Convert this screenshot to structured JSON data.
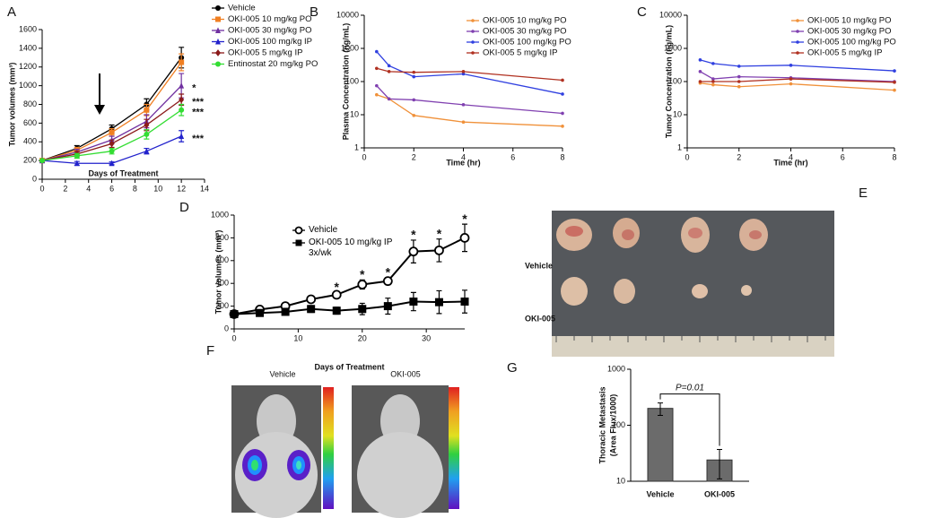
{
  "chart_data": [
    {
      "type": "line",
      "panel": "A",
      "xlabel": "Days of Treatment",
      "ylabel": "Tumor volumes (mm³)",
      "xlim": [
        0,
        14
      ],
      "xticks": [
        0,
        2,
        4,
        6,
        8,
        10,
        12,
        14
      ],
      "ylim": [
        0,
        1600
      ],
      "yticks": [
        0,
        200,
        400,
        600,
        800,
        1000,
        1200,
        1400,
        1600
      ],
      "x": [
        0,
        3,
        6,
        9,
        12
      ],
      "series": [
        {
          "name": "Vehicle",
          "color": "#000000",
          "marker": "circle",
          "values": [
            200,
            330,
            540,
            800,
            1300
          ],
          "errors": [
            0,
            30,
            40,
            60,
            110
          ]
        },
        {
          "name": "OKI-005 10 mg/kg PO",
          "color": "#f07f22",
          "marker": "square",
          "values": [
            200,
            310,
            500,
            740,
            1250
          ],
          "errors": [
            0,
            30,
            40,
            60,
            90
          ]
        },
        {
          "name": "OKI-005 30 mg/kg PO",
          "color": "#7030a0",
          "marker": "triangle",
          "values": [
            200,
            290,
            420,
            620,
            1000
          ],
          "errors": [
            0,
            30,
            40,
            70,
            130
          ]
        },
        {
          "name": "OKI-005 100 mg/kg IP",
          "color": "#2222cc",
          "marker": "triangle",
          "values": [
            200,
            170,
            170,
            300,
            460
          ],
          "errors": [
            0,
            20,
            15,
            30,
            60
          ]
        },
        {
          "name": "OKI-005 5 mg/kg IP",
          "color": "#8b1a1a",
          "marker": "diamond",
          "values": [
            200,
            270,
            380,
            580,
            850
          ],
          "errors": [
            0,
            30,
            40,
            60,
            60
          ]
        },
        {
          "name": "Entinostat 20 mg/kg PO",
          "color": "#33dd33",
          "marker": "circle",
          "values": [
            200,
            250,
            300,
            480,
            740
          ],
          "errors": [
            0,
            25,
            30,
            50,
            60
          ]
        }
      ],
      "annotations": [
        "*",
        "***",
        "***",
        "***"
      ]
    },
    {
      "type": "line",
      "panel": "B",
      "xlabel": "Time (hr)",
      "ylabel": "Plasma Concentration (ng/mL)",
      "log_y": true,
      "xlim": [
        0,
        8
      ],
      "xticks": [
        0,
        2,
        4,
        6,
        8
      ],
      "ylim": [
        1,
        10000
      ],
      "yticks": [
        1,
        10,
        100,
        1000,
        10000
      ],
      "x": [
        0.5,
        1,
        2,
        4,
        8
      ],
      "series": [
        {
          "name": "OKI-005 10 mg/kg PO",
          "color": "#f0913a",
          "marker": "dot",
          "values": [
            40,
            30,
            9.5,
            6,
            4.5
          ]
        },
        {
          "name": "OKI-005 30 mg/kg PO",
          "color": "#8040b0",
          "marker": "dot",
          "values": [
            75,
            30,
            28,
            20,
            11
          ]
        },
        {
          "name": "OKI-005 100 mg/kg PO",
          "color": "#3040e0",
          "marker": "dot",
          "values": [
            800,
            300,
            140,
            170,
            42
          ]
        },
        {
          "name": "OKI-005 5 mg/kg IP",
          "color": "#b03020",
          "marker": "dot",
          "values": [
            250,
            200,
            190,
            200,
            110
          ]
        }
      ]
    },
    {
      "type": "line",
      "panel": "C",
      "xlabel": "Time (hr)",
      "ylabel": "Tumor Concentration (ng/mL)",
      "log_y": true,
      "xlim": [
        0,
        8
      ],
      "xticks": [
        0,
        2,
        4,
        6,
        8
      ],
      "ylim": [
        1,
        10000
      ],
      "yticks": [
        1,
        10,
        100,
        1000,
        10000
      ],
      "x": [
        0.5,
        1,
        2,
        4,
        8
      ],
      "series": [
        {
          "name": "OKI-005 10 mg/kg PO",
          "color": "#f0913a",
          "marker": "dot",
          "values": [
            90,
            80,
            70,
            85,
            55
          ]
        },
        {
          "name": "OKI-005 30 mg/kg PO",
          "color": "#8040b0",
          "marker": "dot",
          "values": [
            200,
            120,
            140,
            130,
            100
          ]
        },
        {
          "name": "OKI-005 100 mg/kg PO",
          "color": "#3040e0",
          "marker": "dot",
          "values": [
            450,
            350,
            290,
            310,
            210
          ]
        },
        {
          "name": "OKI-005 5 mg/kg IP",
          "color": "#b03020",
          "marker": "dot",
          "values": [
            100,
            100,
            100,
            120,
            95
          ]
        }
      ]
    },
    {
      "type": "line",
      "panel": "D",
      "xlabel": "Days of Treatment",
      "ylabel": "Tumor volumes (mm³)",
      "xlim": [
        0,
        36
      ],
      "xticks": [
        0,
        10,
        20,
        30
      ],
      "ylim": [
        0,
        1000
      ],
      "yticks": [
        0,
        200,
        400,
        600,
        800,
        1000
      ],
      "x": [
        0,
        4,
        8,
        12,
        16,
        20,
        24,
        28,
        32,
        36
      ],
      "series": [
        {
          "name": "Vehicle",
          "color": "#000000",
          "marker": "open-circle",
          "values": [
            130,
            170,
            200,
            260,
            300,
            390,
            420,
            680,
            690,
            800
          ],
          "errors": [
            20,
            20,
            20,
            20,
            20,
            40,
            30,
            100,
            100,
            120
          ]
        },
        {
          "name": "OKI-005 10 mg/kg IP 3x/wk",
          "color": "#000000",
          "marker": "square",
          "values": [
            130,
            140,
            150,
            175,
            160,
            175,
            200,
            240,
            235,
            240
          ],
          "errors": [
            20,
            20,
            20,
            30,
            30,
            50,
            70,
            80,
            100,
            100
          ]
        }
      ],
      "annotations": [
        "*",
        "*",
        "*",
        "*",
        "*",
        "*"
      ]
    },
    {
      "type": "bar",
      "panel": "G",
      "ylabel": [
        "Thoracic Metastasis",
        "(Area Flux/1000)"
      ],
      "log_y": true,
      "categories": [
        "Vehicle",
        "OKI-005"
      ],
      "values": [
        200,
        24
      ],
      "errors": [
        50,
        13
      ],
      "color": "#6b6b6b",
      "ylim": [
        10,
        1000
      ],
      "yticks": [
        10,
        100,
        1000
      ],
      "annotation": "P=0.01"
    }
  ],
  "images": [
    {
      "panel": "E",
      "labels": [
        "Vehicle",
        "OKI-005"
      ]
    },
    {
      "panel": "F",
      "labels": [
        "Vehicle",
        "OKI-005"
      ]
    }
  ]
}
